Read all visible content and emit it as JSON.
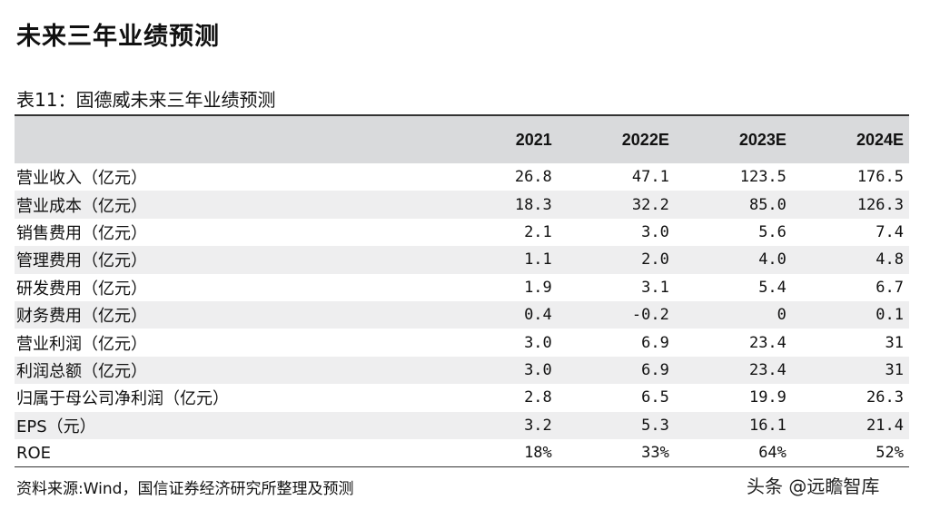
{
  "heading": "未来三年业绩预测",
  "table": {
    "caption": "表11：固德威未来三年业绩预测",
    "columns": [
      "2021",
      "2022E",
      "2023E",
      "2024E"
    ],
    "rows": [
      {
        "label": "营业收入（亿元）",
        "values": [
          "26.8",
          "47.1",
          "123.5",
          "176.5"
        ]
      },
      {
        "label": "营业成本（亿元）",
        "values": [
          "18.3",
          "32.2",
          "85.0",
          "126.3"
        ]
      },
      {
        "label": "销售费用（亿元）",
        "values": [
          "2.1",
          "3.0",
          "5.6",
          "7.4"
        ]
      },
      {
        "label": "管理费用（亿元）",
        "values": [
          "1.1",
          "2.0",
          "4.0",
          "4.8"
        ]
      },
      {
        "label": "研发费用（亿元）",
        "values": [
          "1.9",
          "3.1",
          "5.4",
          "6.7"
        ]
      },
      {
        "label": "财务费用（亿元）",
        "values": [
          "0.4",
          "-0.2",
          "0",
          "0.1"
        ]
      },
      {
        "label": "营业利润（亿元）",
        "values": [
          "3.0",
          "6.9",
          "23.4",
          "31"
        ]
      },
      {
        "label": "利润总额（亿元）",
        "values": [
          "3.0",
          "6.9",
          "23.4",
          "31"
        ]
      },
      {
        "label": "归属于母公司净利润（亿元）",
        "values": [
          "2.8",
          "6.5",
          "19.9",
          "26.3"
        ]
      },
      {
        "label": "EPS（元）",
        "values": [
          "3.2",
          "5.3",
          "16.1",
          "21.4"
        ]
      },
      {
        "label": "ROE",
        "values": [
          "18%",
          "33%",
          "64%",
          "52%"
        ]
      }
    ]
  },
  "source": "资料来源:Wind，国信证券经济研究所整理及预测",
  "watermark": "头条 @远瞻智库"
}
